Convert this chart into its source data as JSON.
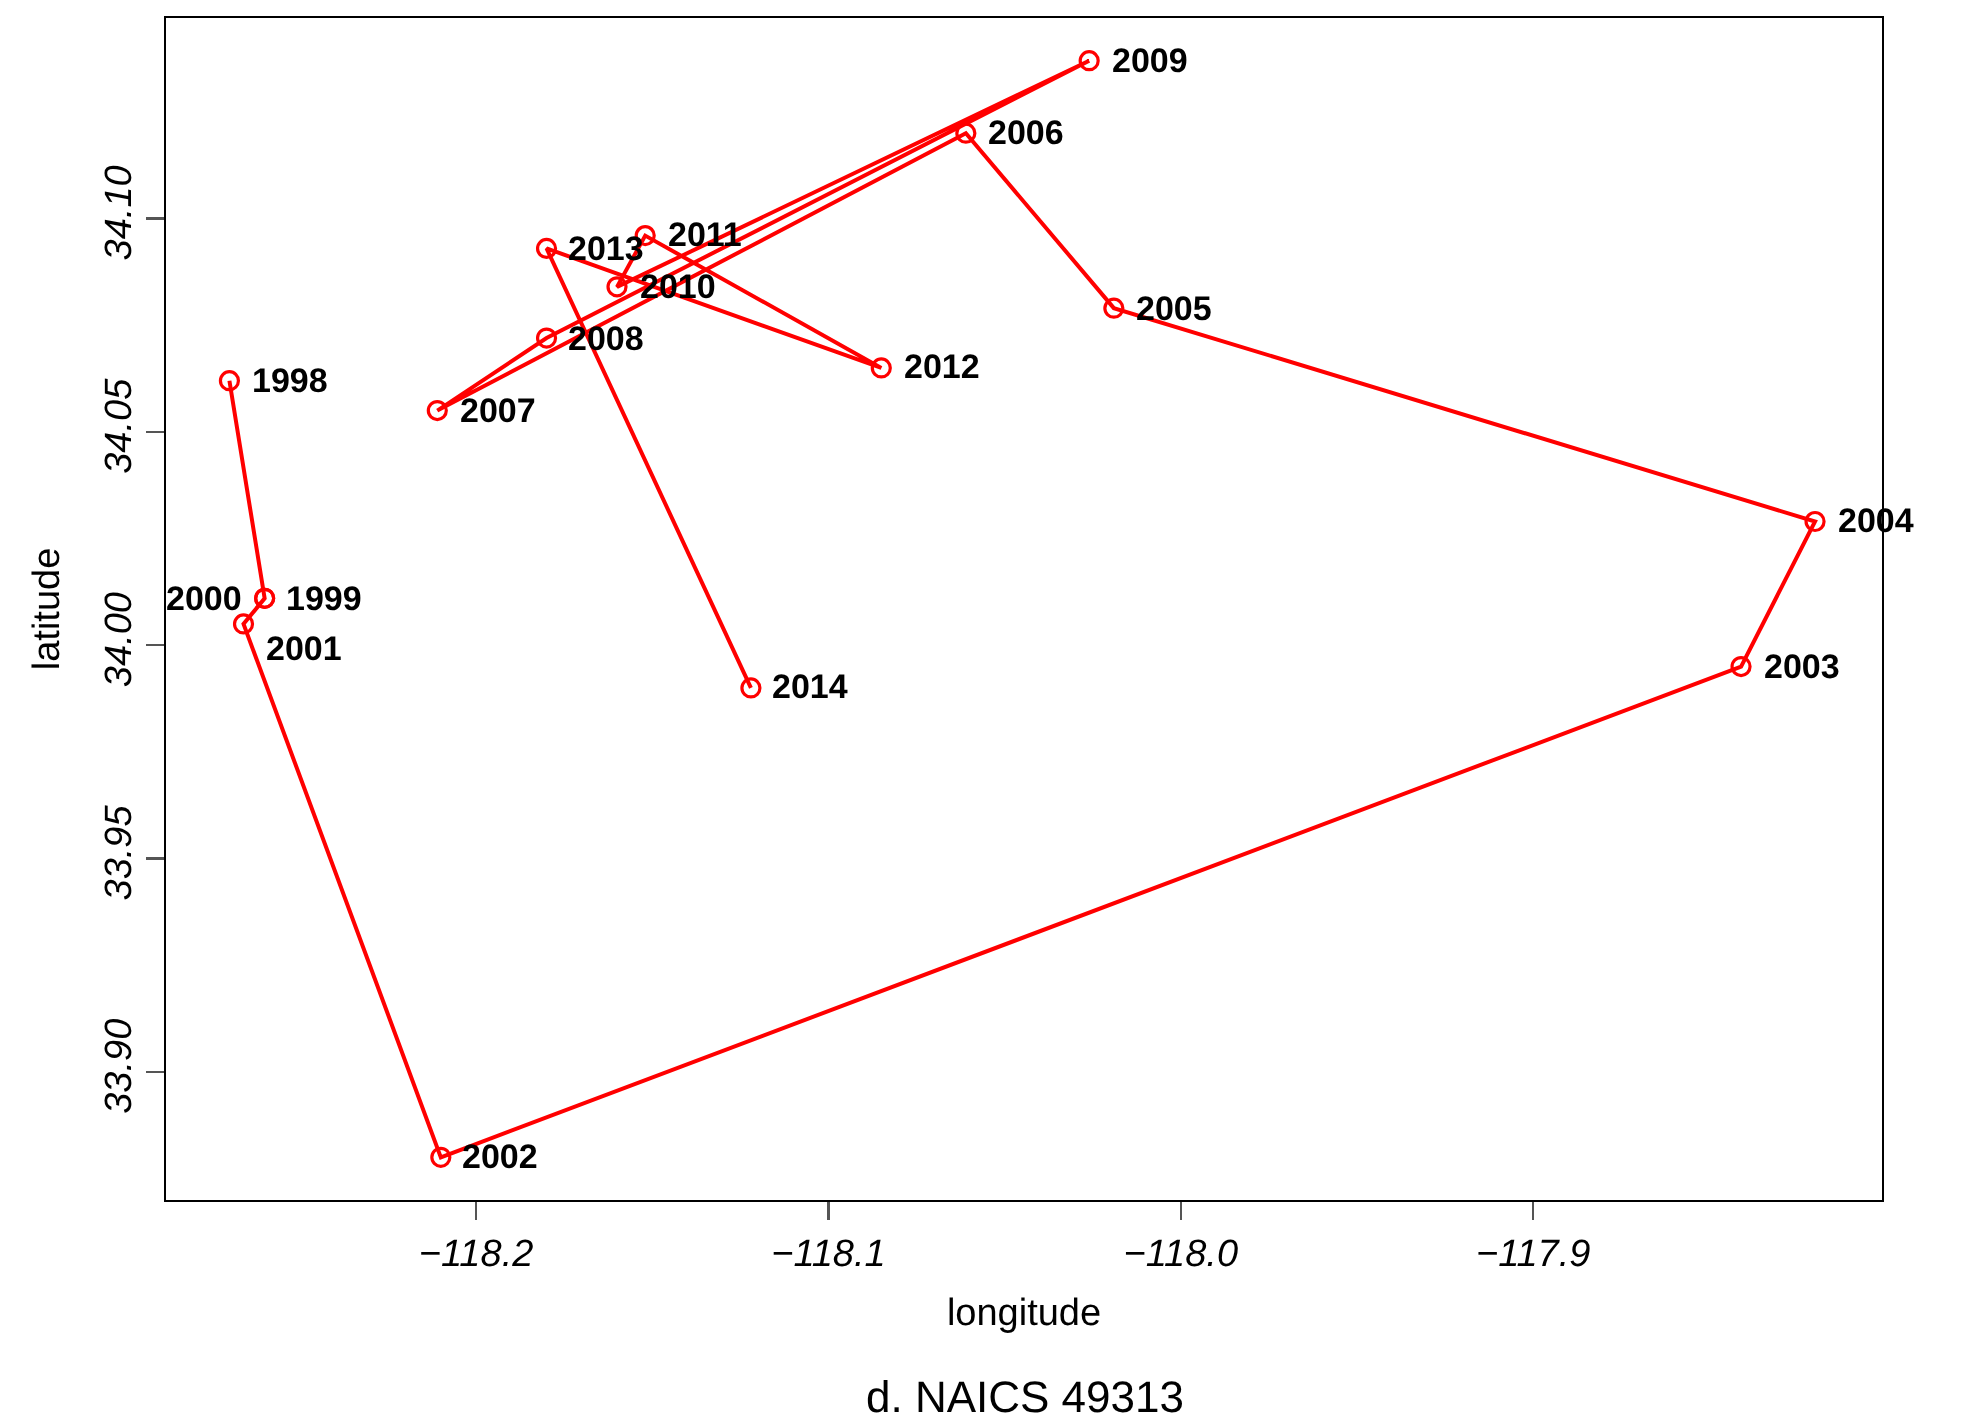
{
  "chart_data": {
    "type": "line",
    "marker": "circle",
    "line_style": "solid",
    "color": "#ff0000",
    "x": [
      -118.27,
      -118.26,
      -118.26,
      -118.266,
      -118.21,
      -117.841,
      -117.82,
      -118.019,
      -118.061,
      -118.211,
      -118.18,
      -118.026,
      -118.16,
      -118.152,
      -118.085,
      -118.18,
      -118.122
    ],
    "values": [
      34.062,
      34.011,
      34.011,
      34.005,
      33.88,
      33.995,
      34.029,
      34.079,
      34.12,
      34.055,
      34.072,
      34.137,
      34.084,
      34.096,
      34.065,
      34.093,
      33.99
    ],
    "xlabel": "longitude",
    "ylabel": "latitude",
    "xlim": [
      -118.288,
      -117.801
    ],
    "ylim": [
      33.87,
      34.147
    ],
    "xticks": [
      {
        "value": -118.2,
        "label": "−118.2"
      },
      {
        "value": -118.1,
        "label": "−118.1"
      },
      {
        "value": -118.0,
        "label": "−118.0"
      },
      {
        "value": -117.9,
        "label": "−117.9"
      }
    ],
    "yticks": [
      {
        "value": 33.9,
        "label": "33.90"
      },
      {
        "value": 33.95,
        "label": "33.95"
      },
      {
        "value": 34.0,
        "label": "34.00"
      },
      {
        "value": 34.05,
        "label": "34.05"
      },
      {
        "value": 34.1,
        "label": "34.10"
      }
    ],
    "annotations": [
      {
        "text": "1998",
        "x": -118.27,
        "y": 34.062
      },
      {
        "text": "1999",
        "x": -118.26,
        "y": 34.011
      },
      {
        "text": "2000",
        "x": -118.26,
        "y": 34.011
      },
      {
        "text": "2001",
        "x": -118.266,
        "y": 34.005
      },
      {
        "text": "2002",
        "x": -118.21,
        "y": 33.88
      },
      {
        "text": "2003",
        "x": -117.841,
        "y": 33.995
      },
      {
        "text": "2004",
        "x": -117.82,
        "y": 34.029
      },
      {
        "text": "2005",
        "x": -118.019,
        "y": 34.079
      },
      {
        "text": "2006",
        "x": -118.061,
        "y": 34.12
      },
      {
        "text": "2007",
        "x": -118.211,
        "y": 34.055
      },
      {
        "text": "2008",
        "x": -118.18,
        "y": 34.072
      },
      {
        "text": "2009",
        "x": -118.026,
        "y": 34.137
      },
      {
        "text": "2010",
        "x": -118.16,
        "y": 34.084
      },
      {
        "text": "2011",
        "x": -118.152,
        "y": 34.096
      },
      {
        "text": "2012",
        "x": -118.085,
        "y": 34.065
      },
      {
        "text": "2013",
        "x": -118.18,
        "y": 34.093
      },
      {
        "text": "2014",
        "x": -118.122,
        "y": 33.99
      },
      "d. NAICS 49313"
    ]
  }
}
